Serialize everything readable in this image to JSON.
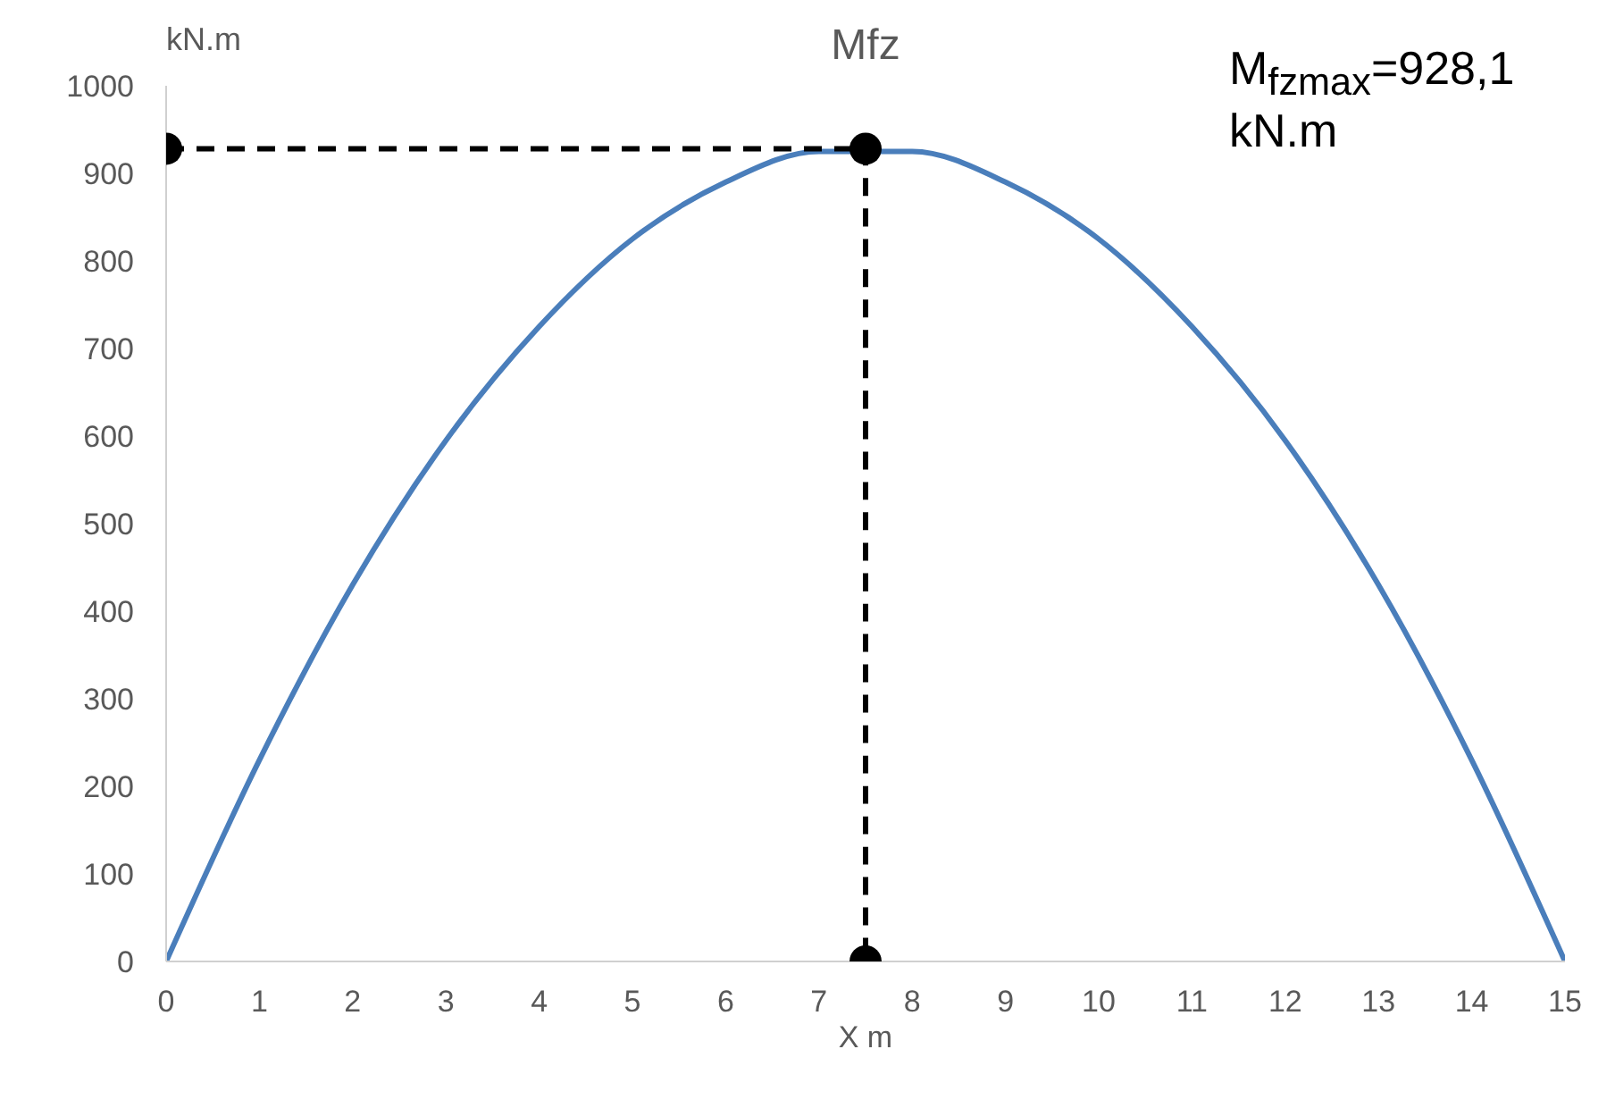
{
  "chart_data": {
    "type": "line",
    "title": "Mfz",
    "xlabel": "X m",
    "ylabel": "kN.m",
    "annotations": [
      "M$_{fzmax}$=928,1 kN.m"
    ],
    "xlim": [
      0,
      15
    ],
    "xticks": [
      0,
      1,
      2,
      3,
      4,
      5,
      6,
      7,
      8,
      9,
      10,
      11,
      12,
      13,
      14,
      15
    ],
    "ylim": [
      0,
      1000
    ],
    "yticks": [
      0,
      100,
      200,
      300,
      400,
      500,
      600,
      700,
      800,
      900,
      1000
    ],
    "grid": false,
    "series": [
      {
        "color": "#4a7ebb",
        "marker": "none",
        "line_style": "solid",
        "x": [
          0,
          1,
          2,
          3,
          4,
          5,
          6,
          7,
          8,
          9,
          10,
          11,
          12,
          13,
          14,
          15
        ],
        "values": [
          0,
          230,
          430,
          595,
          725,
          825,
          890,
          925,
          925,
          890,
          825,
          725,
          595,
          430,
          230,
          0
        ]
      },
      {
        "color": "#000000",
        "marker": "circle",
        "line_style": "dashed",
        "x": [
          0,
          7.5,
          7.5
        ],
        "values": [
          928.1,
          928.1,
          0
        ]
      }
    ]
  }
}
